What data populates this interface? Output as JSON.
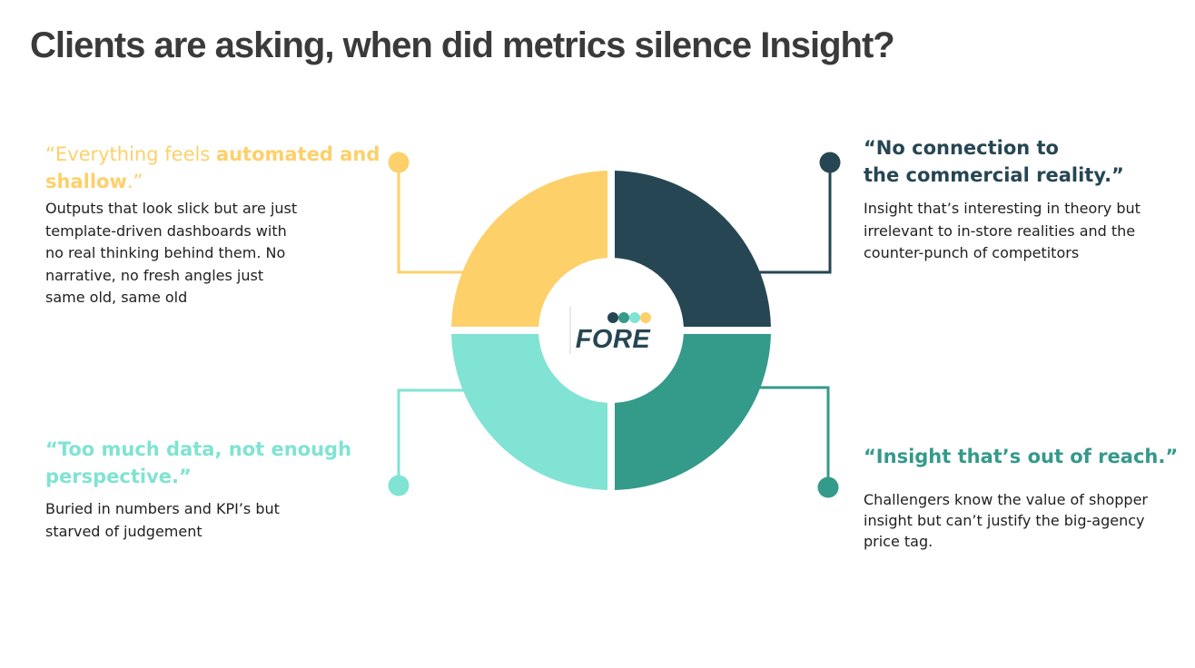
{
  "title": "Clients are asking, when did metrics silence Insight?",
  "logo": {
    "text": "FORE",
    "dot_colors": [
      "#264653",
      "#349a8a",
      "#80e3d3",
      "#fdd06a"
    ]
  },
  "colors": {
    "yellow": "#fdd06a",
    "navy": "#264653",
    "teal": "#349a8a",
    "mint": "#80e3d3"
  },
  "quadrants": {
    "top_left": {
      "quote_light": "“Everything feels ",
      "quote_bold": "automated and shallow",
      "quote_end": ".”",
      "lines": [
        "Outputs that look slick but are just",
        "template-driven dashboards with",
        "no real thinking behind them. No",
        "narrative, no fresh angles just",
        "same old, same old"
      ]
    },
    "top_right": {
      "quote_lines": [
        "“No connection to",
        "the commercial reality.”"
      ],
      "lines": [
        "Insight that’s interesting in theory but",
        "irrelevant to in-store realities and the",
        "counter-punch of competitors"
      ]
    },
    "bottom_left": {
      "quote_lines": [
        "“Too much data, not enough",
        "perspective.”"
      ],
      "lines": [
        "Buried in numbers and KPI’s but",
        "starved of judgement"
      ]
    },
    "bottom_right": {
      "quote_lines": [
        "“Insight that’s out of reach.”"
      ],
      "lines": [
        "Challengers know the value of shopper",
        "insight but can’t justify the big-agency",
        "price tag."
      ]
    }
  }
}
